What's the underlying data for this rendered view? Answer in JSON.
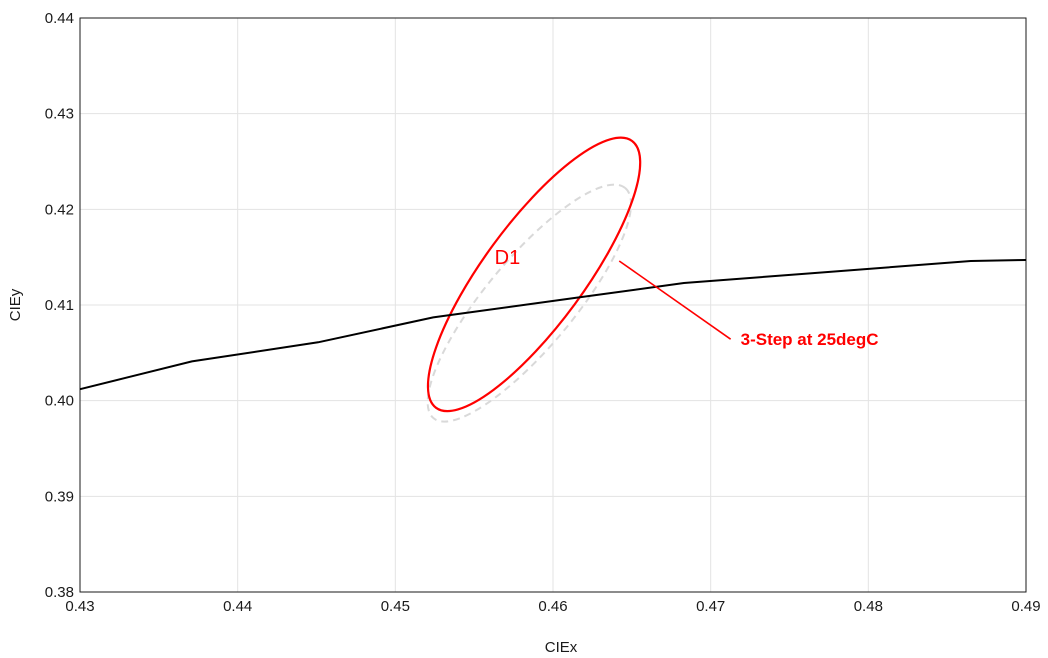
{
  "chart_data": {
    "type": "line",
    "title": "",
    "xlabel": "CIEx",
    "ylabel": "CIEy",
    "xlim": [
      0.43,
      0.49
    ],
    "ylim": [
      0.38,
      0.44
    ],
    "xticks": [
      0.43,
      0.44,
      0.45,
      0.46,
      0.47,
      0.48,
      0.49
    ],
    "yticks": [
      0.38,
      0.39,
      0.4,
      0.41,
      0.42,
      0.43,
      0.44
    ],
    "xtick_labels": [
      "0.43",
      "0.44",
      "0.45",
      "0.46",
      "0.47",
      "0.48",
      "0.49"
    ],
    "ytick_labels": [
      "0.38",
      "0.39",
      "0.40",
      "0.41",
      "0.42",
      "0.43",
      "0.44"
    ],
    "grid": true,
    "series": [
      {
        "color": "#000000",
        "x": [
          0.43,
          0.4371,
          0.4451,
          0.4524,
          0.4617,
          0.4683,
          0.4763,
          0.4865,
          0.49
        ],
        "y": [
          0.4012,
          0.4041,
          0.4061,
          0.4087,
          0.4108,
          0.4123,
          0.4133,
          0.4146,
          0.4147
        ]
      }
    ],
    "ellipses": [
      {
        "label": "D1",
        "color": "#ff0000",
        "center": [
          0.4588,
          0.4132
        ],
        "semi_axes": [
          0.0105,
          0.0032
        ],
        "angle_deg": 53.7,
        "dashed": false
      },
      {
        "label": "",
        "color": "#d9d9d9",
        "center": [
          0.4585,
          0.4102
        ],
        "semi_axes": [
          0.0095,
          0.0028
        ],
        "angle_deg": 50.2,
        "dashed": true
      }
    ],
    "annotations": [
      {
        "text": "D1",
        "color": "#ff0000",
        "x": 0.4563,
        "y": 0.4143
      },
      {
        "text": "3-Step at 25degC",
        "color": "#ff0000",
        "x": 0.4719,
        "y": 0.4058,
        "arrow_to": [
          0.4642,
          0.4146
        ]
      }
    ]
  }
}
